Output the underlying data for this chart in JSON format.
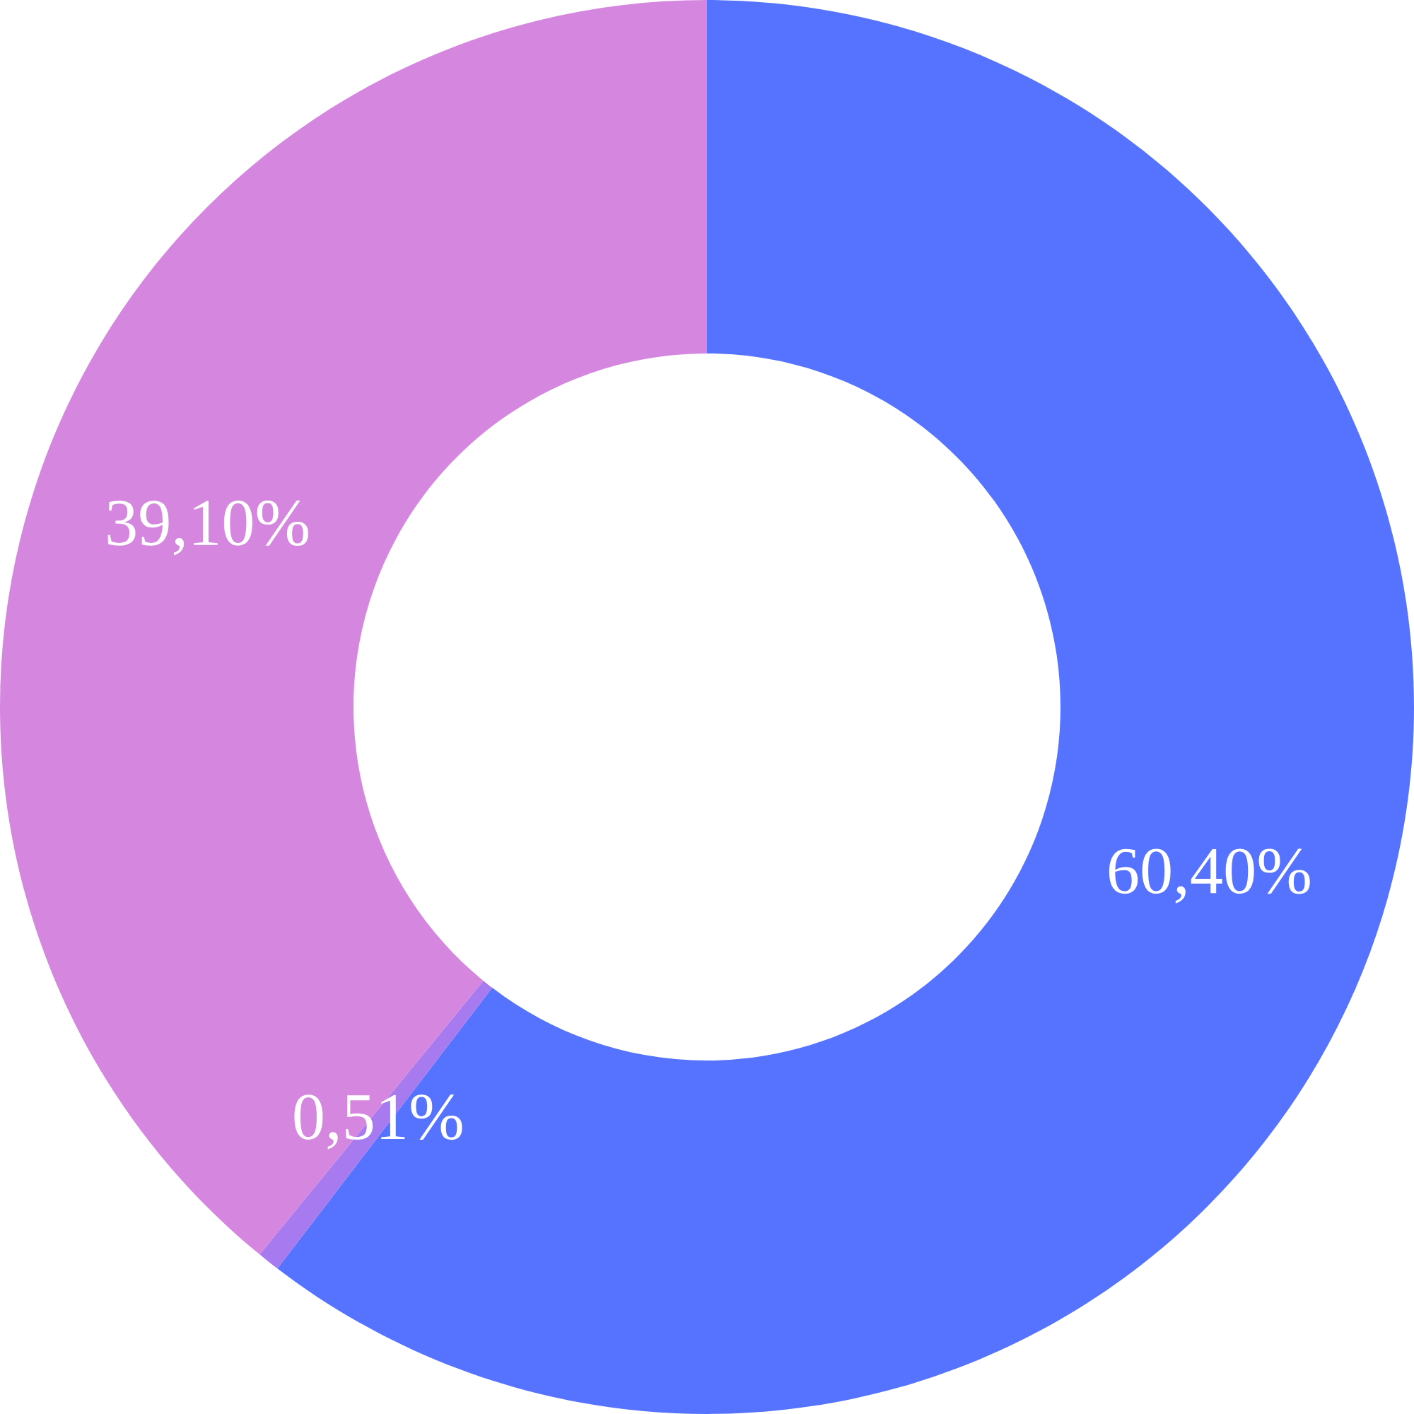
{
  "chart_data": {
    "type": "donut",
    "categories": [
      null,
      null,
      null
    ],
    "values": [
      60.4,
      0.51,
      39.1
    ],
    "colors": [
      "#5573ff",
      "#a77af0",
      "#d587e0"
    ],
    "value_labels": [
      "60,40%",
      "0,51%",
      "39,10%"
    ]
  }
}
